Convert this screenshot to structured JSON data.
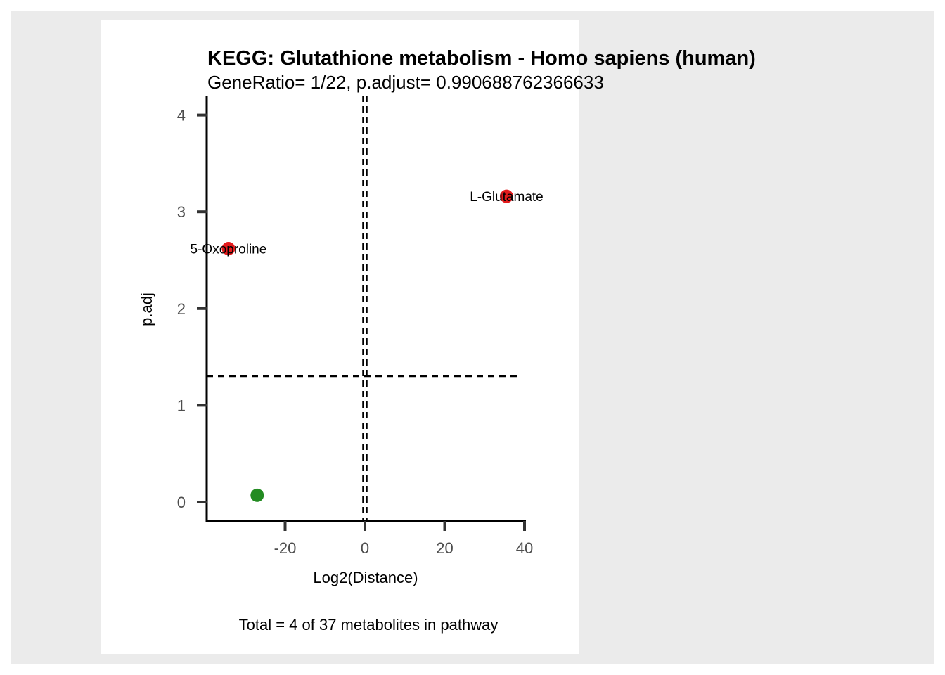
{
  "colors": {
    "up": "#e31a1c",
    "down": "#238b22",
    "axis": "#000000",
    "tick": "#333333",
    "panel_bg": "#ffffff",
    "outer_bg": "#ebebeb"
  },
  "chart_data": {
    "type": "scatter",
    "title": "KEGG: Glutathione metabolism - Homo sapiens (human)",
    "subtitle": "GeneRatio= 1/22, p.adjust= 0.990688762366633",
    "xlabel": "Log2(Distance)",
    "ylabel": "p.adj",
    "caption": "Total = 4 of 37 metabolites in pathway",
    "xlim": [
      -40,
      40
    ],
    "ylim": [
      -0.2,
      4.2
    ],
    "xticks": [
      -20,
      0,
      20,
      40
    ],
    "yticks": [
      0,
      1,
      2,
      3,
      4
    ],
    "reference_lines": {
      "vertical": [
        0,
        0
      ],
      "horizontal": [
        1.3
      ]
    },
    "grid": false,
    "points": [
      {
        "x": 35.5,
        "y": 3.16,
        "label": "L-Glutamate",
        "color": "#e31a1c"
      },
      {
        "x": -34.2,
        "y": 2.62,
        "label": "5-Oxoproline",
        "color": "#e31a1c"
      },
      {
        "x": -27.0,
        "y": 0.07,
        "label": "",
        "color": "#238b22"
      }
    ]
  }
}
